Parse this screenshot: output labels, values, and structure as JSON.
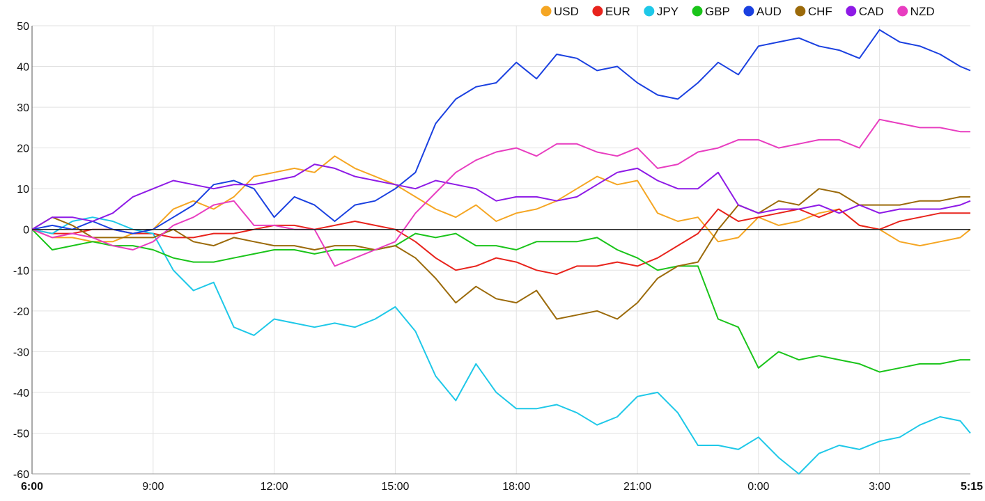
{
  "chart_data": {
    "type": "line",
    "title": "",
    "xlabel": "",
    "ylabel": "",
    "ylim": [
      -60,
      50
    ],
    "yticks": [
      50,
      40,
      30,
      20,
      10,
      0,
      -10,
      -20,
      -30,
      -40,
      -50,
      -60
    ],
    "xlim": [
      0,
      1395
    ],
    "x_unit": "minutes after 6:00",
    "xticks": [
      {
        "value": 0,
        "label": "6:00",
        "bold": true
      },
      {
        "value": 180,
        "label": "9:00",
        "bold": false
      },
      {
        "value": 360,
        "label": "12:00",
        "bold": false
      },
      {
        "value": 540,
        "label": "15:00",
        "bold": false
      },
      {
        "value": 720,
        "label": "18:00",
        "bold": false
      },
      {
        "value": 900,
        "label": "21:00",
        "bold": false
      },
      {
        "value": 1080,
        "label": "0:00",
        "bold": false
      },
      {
        "value": 1260,
        "label": "3:00",
        "bold": false
      },
      {
        "value": 1395,
        "label": "5:15",
        "bold": true
      }
    ],
    "grid": true,
    "legend_position": "top-right",
    "x": [
      0,
      30,
      60,
      90,
      120,
      150,
      180,
      210,
      240,
      270,
      300,
      330,
      360,
      390,
      420,
      450,
      480,
      510,
      540,
      570,
      600,
      630,
      660,
      690,
      720,
      750,
      780,
      810,
      840,
      870,
      900,
      930,
      960,
      990,
      1020,
      1050,
      1080,
      1110,
      1140,
      1170,
      1200,
      1230,
      1260,
      1290,
      1320,
      1350,
      1380,
      1395
    ],
    "series": [
      {
        "name": "USD",
        "color": "#f5a623",
        "values": [
          0,
          -2,
          -2,
          -3,
          -3,
          -1,
          0,
          5,
          7,
          5,
          8,
          13,
          14,
          15,
          14,
          18,
          15,
          13,
          11,
          8,
          5,
          3,
          6,
          2,
          4,
          5,
          7,
          10,
          13,
          11,
          12,
          4,
          2,
          3,
          -3,
          -2,
          3,
          1,
          2,
          4,
          5,
          1,
          0,
          -3,
          -4,
          -3,
          -2,
          0
        ]
      },
      {
        "name": "EUR",
        "color": "#e8231c",
        "values": [
          0,
          -1,
          -1,
          0,
          0,
          -1,
          -1,
          -2,
          -2,
          -1,
          -1,
          0,
          1,
          1,
          0,
          1,
          2,
          1,
          0,
          -3,
          -7,
          -10,
          -9,
          -7,
          -8,
          -10,
          -11,
          -9,
          -9,
          -8,
          -9,
          -7,
          -4,
          -1,
          5,
          2,
          3,
          4,
          5,
          3,
          5,
          1,
          0,
          2,
          3,
          4,
          4,
          4
        ]
      },
      {
        "name": "JPY",
        "color": "#1ec8e8",
        "values": [
          0,
          -1,
          2,
          3,
          2,
          0,
          -1,
          -10,
          -15,
          -13,
          -24,
          -26,
          -22,
          -23,
          -24,
          -23,
          -24,
          -22,
          -19,
          -25,
          -36,
          -42,
          -33,
          -40,
          -44,
          -44,
          -43,
          -45,
          -48,
          -46,
          -41,
          -40,
          -45,
          -53,
          -53,
          -54,
          -51,
          -56,
          -60,
          -55,
          -53,
          -54,
          -52,
          -51,
          -48,
          -46,
          -47,
          -50
        ]
      },
      {
        "name": "GBP",
        "color": "#1ac41a",
        "values": [
          0,
          -5,
          -4,
          -3,
          -4,
          -4,
          -5,
          -7,
          -8,
          -8,
          -7,
          -6,
          -5,
          -5,
          -6,
          -5,
          -5,
          -5,
          -4,
          -1,
          -2,
          -1,
          -4,
          -4,
          -5,
          -3,
          -3,
          -3,
          -2,
          -5,
          -7,
          -10,
          -9,
          -9,
          -22,
          -24,
          -34,
          -30,
          -32,
          -31,
          -32,
          -33,
          -35,
          -34,
          -33,
          -33,
          -32,
          -32
        ]
      },
      {
        "name": "AUD",
        "color": "#1a40e0",
        "values": [
          0,
          1,
          0,
          2,
          0,
          -1,
          0,
          3,
          6,
          11,
          12,
          10,
          3,
          8,
          6,
          2,
          6,
          7,
          10,
          14,
          26,
          32,
          35,
          36,
          41,
          37,
          43,
          42,
          39,
          40,
          36,
          33,
          32,
          36,
          41,
          38,
          45,
          46,
          47,
          45,
          44,
          42,
          49,
          46,
          45,
          43,
          40,
          39
        ]
      },
      {
        "name": "CHF",
        "color": "#9b6a0a",
        "values": [
          0,
          3,
          1,
          -2,
          -2,
          -2,
          -2,
          0,
          -3,
          -4,
          -2,
          -3,
          -4,
          -4,
          -5,
          -4,
          -4,
          -5,
          -4,
          -7,
          -12,
          -18,
          -14,
          -17,
          -18,
          -15,
          -22,
          -21,
          -20,
          -22,
          -18,
          -12,
          -9,
          -8,
          0,
          6,
          4,
          7,
          6,
          10,
          9,
          6,
          6,
          6,
          7,
          7,
          8,
          8
        ]
      },
      {
        "name": "CAD",
        "color": "#8e1ae6",
        "values": [
          0,
          3,
          3,
          2,
          4,
          8,
          10,
          12,
          11,
          10,
          11,
          11,
          12,
          13,
          16,
          15,
          13,
          12,
          11,
          10,
          12,
          11,
          10,
          7,
          8,
          8,
          7,
          8,
          11,
          14,
          15,
          12,
          10,
          10,
          14,
          6,
          4,
          5,
          5,
          6,
          4,
          6,
          4,
          5,
          5,
          5,
          6,
          7
        ]
      },
      {
        "name": "NZD",
        "color": "#e83dc0",
        "values": [
          0,
          -2,
          -1,
          -2,
          -4,
          -5,
          -3,
          1,
          3,
          6,
          7,
          1,
          1,
          0,
          0,
          -9,
          -7,
          -5,
          -3,
          4,
          9,
          14,
          17,
          19,
          20,
          18,
          21,
          21,
          19,
          18,
          20,
          15,
          16,
          19,
          20,
          22,
          22,
          20,
          21,
          22,
          22,
          20,
          27,
          26,
          25,
          25,
          24,
          24
        ]
      }
    ]
  }
}
